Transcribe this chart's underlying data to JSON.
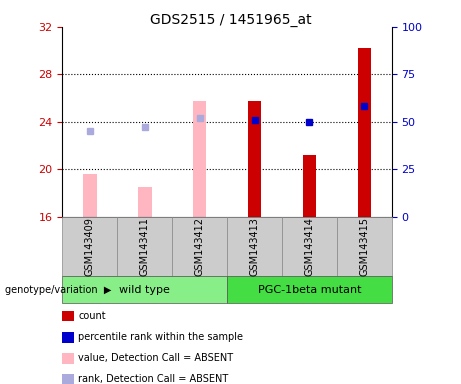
{
  "title": "GDS2515 / 1451965_at",
  "samples": [
    "GSM143409",
    "GSM143411",
    "GSM143412",
    "GSM143413",
    "GSM143414",
    "GSM143415"
  ],
  "ylim_left": [
    16,
    32
  ],
  "ylim_right": [
    0,
    100
  ],
  "yticks_left": [
    16,
    20,
    24,
    28,
    32
  ],
  "yticks_right": [
    0,
    25,
    50,
    75,
    100
  ],
  "bar_values_absent": [
    19.6,
    18.5,
    25.8,
    null,
    null,
    null
  ],
  "bar_values_present": [
    null,
    null,
    null,
    25.8,
    21.2,
    30.2
  ],
  "rank_markers_absent": [
    23.2,
    23.6,
    24.3,
    null,
    null,
    null
  ],
  "rank_markers_present": [
    null,
    null,
    null,
    24.15,
    24.0,
    25.3
  ],
  "bar_color_absent": "#FFB6C1",
  "bar_color_present": "#CC0000",
  "rank_color_absent": "#AAAADD",
  "rank_color_present": "#0000CC",
  "bar_bottom": 16,
  "left_axis_color": "#CC0000",
  "right_axis_color": "#0000CC",
  "bar_width": 0.25,
  "group_info": [
    {
      "label": "wild type",
      "start": 0,
      "end": 2,
      "color": "#88EE88"
    },
    {
      "label": "PGC-1beta mutant",
      "start": 3,
      "end": 5,
      "color": "#44DD44"
    }
  ],
  "legend_items": [
    {
      "label": "count",
      "color": "#CC0000"
    },
    {
      "label": "percentile rank within the sample",
      "color": "#0000CC"
    },
    {
      "label": "value, Detection Call = ABSENT",
      "color": "#FFB6C1"
    },
    {
      "label": "rank, Detection Call = ABSENT",
      "color": "#AAAADD"
    }
  ],
  "genotype_label": "genotype/variation"
}
